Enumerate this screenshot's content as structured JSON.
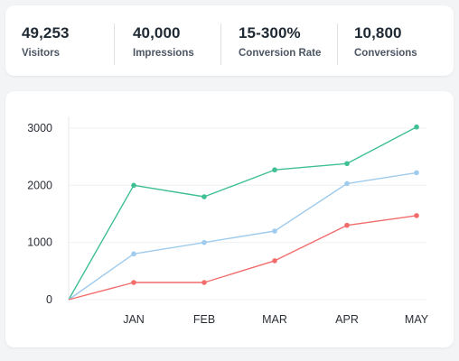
{
  "stats": [
    {
      "value": "49,253",
      "label": "Visitors"
    },
    {
      "value": "40,000",
      "label": "Impressions"
    },
    {
      "value": "15-300%",
      "label": "Conversion Rate"
    },
    {
      "value": "10,800",
      "label": "Conversions"
    }
  ],
  "chart_data": {
    "type": "line",
    "x": [
      "",
      "JAN",
      "FEB",
      "MAR",
      "APR",
      "MAY"
    ],
    "series": [
      {
        "color": "#3fbf94",
        "values": [
          0,
          2000,
          1800,
          2270,
          2380,
          3020
        ]
      },
      {
        "color": "#9fcbed",
        "values": [
          0,
          800,
          1000,
          1200,
          2030,
          2220
        ]
      },
      {
        "color": "#f26c6c",
        "values": [
          0,
          300,
          300,
          680,
          1300,
          1470
        ]
      }
    ],
    "yticks": [
      0,
      1000,
      2000,
      3000
    ],
    "ylim": [
      0,
      3000
    ],
    "grid": true,
    "title": "",
    "xlabel": "",
    "ylabel": ""
  }
}
